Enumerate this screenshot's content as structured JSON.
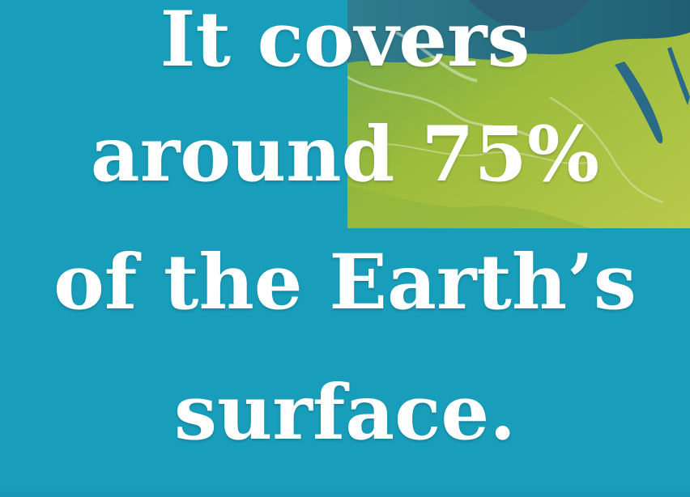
{
  "slide": {
    "background_color": "#189eba",
    "lines": [
      "It covers",
      "around 75%",
      "of the Earth’s",
      "surface."
    ]
  },
  "image": {
    "subject": "aerial-view-of-earth-land-and-water",
    "colors": [
      "#9fbd3a",
      "#2a6a7a",
      "#d9e3b0"
    ]
  }
}
